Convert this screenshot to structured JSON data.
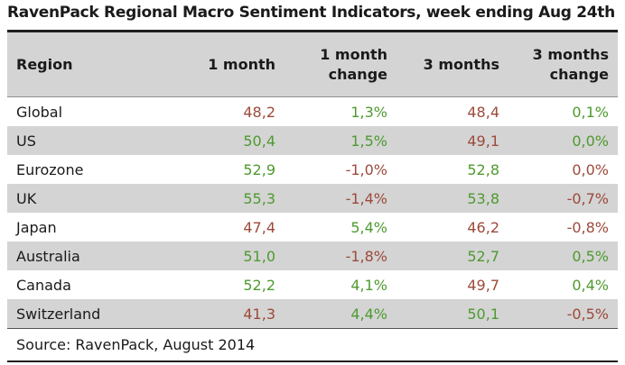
{
  "title": "RavenPack Regional Macro Sentiment Indicators, week ending Aug 24th",
  "source": "Source: RavenPack, August 2014",
  "colors": {
    "positive": "#4e9a2f",
    "negative": "#9c4a3a",
    "header_bg": "#d4d4d4"
  },
  "chart_data": {
    "type": "table",
    "columns": [
      "Region",
      "1 month",
      "1 month change",
      "3 months",
      "3 months change"
    ],
    "header_lines": [
      [
        "Region"
      ],
      [
        "1 month"
      ],
      [
        "1 month",
        "change"
      ],
      [
        "3 months"
      ],
      [
        "3 months",
        "change"
      ]
    ],
    "rows": [
      {
        "region": "Global",
        "m1": "48,2",
        "m1c": "1,3%",
        "m3": "48,4",
        "m3c": "0,1%",
        "m1_dir": "neg",
        "m1c_dir": "pos",
        "m3_dir": "neg",
        "m3c_dir": "pos"
      },
      {
        "region": "US",
        "m1": "50,4",
        "m1c": "1,5%",
        "m3": "49,1",
        "m3c": "0,0%",
        "m1_dir": "pos",
        "m1c_dir": "pos",
        "m3_dir": "neg",
        "m3c_dir": "pos"
      },
      {
        "region": "Eurozone",
        "m1": "52,9",
        "m1c": "-1,0%",
        "m3": "52,8",
        "m3c": "0,0%",
        "m1_dir": "pos",
        "m1c_dir": "neg",
        "m3_dir": "pos",
        "m3c_dir": "neg"
      },
      {
        "region": "UK",
        "m1": "55,3",
        "m1c": "-1,4%",
        "m3": "53,8",
        "m3c": "-0,7%",
        "m1_dir": "pos",
        "m1c_dir": "neg",
        "m3_dir": "pos",
        "m3c_dir": "neg"
      },
      {
        "region": "Japan",
        "m1": "47,4",
        "m1c": "5,4%",
        "m3": "46,2",
        "m3c": "-0,8%",
        "m1_dir": "neg",
        "m1c_dir": "pos",
        "m3_dir": "neg",
        "m3c_dir": "neg"
      },
      {
        "region": "Australia",
        "m1": "51,0",
        "m1c": "-1,8%",
        "m3": "52,7",
        "m3c": "0,5%",
        "m1_dir": "pos",
        "m1c_dir": "neg",
        "m3_dir": "pos",
        "m3c_dir": "pos"
      },
      {
        "region": "Canada",
        "m1": "52,2",
        "m1c": "4,1%",
        "m3": "49,7",
        "m3c": "0,4%",
        "m1_dir": "pos",
        "m1c_dir": "pos",
        "m3_dir": "neg",
        "m3c_dir": "pos"
      },
      {
        "region": "Switzerland",
        "m1": "41,3",
        "m1c": "4,4%",
        "m3": "50,1",
        "m3c": "-0,5%",
        "m1_dir": "neg",
        "m1c_dir": "pos",
        "m3_dir": "pos",
        "m3c_dir": "neg"
      }
    ]
  }
}
